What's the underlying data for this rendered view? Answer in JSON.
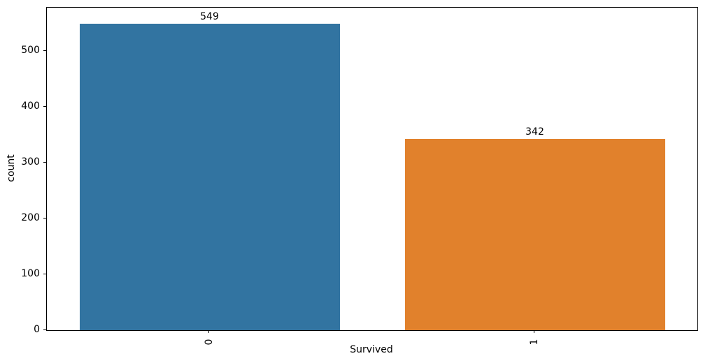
{
  "figure": {
    "background": "#ffffff",
    "spine_color": "#000000",
    "text_color": "#000000"
  },
  "chart_data": {
    "type": "bar",
    "title": "",
    "xlabel": "Survived",
    "ylabel": "count",
    "categories": [
      "0",
      "1"
    ],
    "values": [
      549,
      342
    ],
    "bar_labels": [
      "549",
      "342"
    ],
    "bar_colors": [
      "#3274a1",
      "#e1812c"
    ],
    "ylim": [
      0,
      577.5
    ],
    "yticks": [
      0,
      100,
      200,
      300,
      400,
      500
    ],
    "grid": false,
    "legend": null,
    "xtick_rotation": 90,
    "bar_width_fraction": 0.8
  }
}
